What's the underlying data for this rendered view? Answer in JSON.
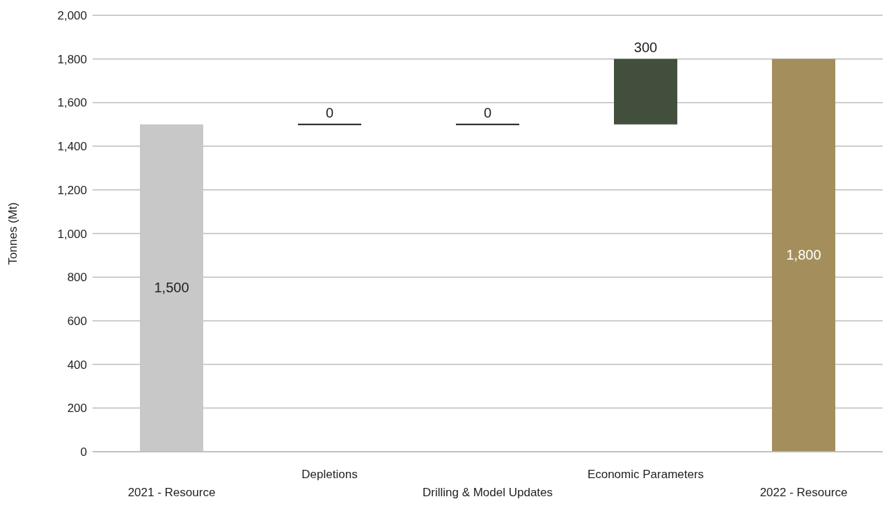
{
  "chart_data": {
    "type": "bar",
    "ylabel": "Tonnes (Mt)",
    "categories": [
      "2021 - Resource",
      "Depletions",
      "Drilling & Model Updates",
      "Economic Parameters",
      "2022 - Resource"
    ],
    "base": [
      0,
      1500,
      1500,
      1500,
      0
    ],
    "values": [
      1500,
      0,
      0,
      300,
      1800
    ],
    "colors": [
      "#c8c8c8",
      "#1a1a1a",
      "#1a1a1a",
      "#434f3d",
      "#a48f5c"
    ],
    "value_labels": [
      "1,500",
      "0",
      "0",
      "300",
      "1,800"
    ],
    "ylim": [
      0,
      2000
    ],
    "yticks": [
      {
        "value": 0,
        "label": "0"
      },
      {
        "value": 200,
        "label": "200"
      },
      {
        "value": 400,
        "label": "400"
      },
      {
        "value": 600,
        "label": "600"
      },
      {
        "value": 800,
        "label": "800"
      },
      {
        "value": 1000,
        "label": "1,000"
      },
      {
        "value": 1200,
        "label": "1,200"
      },
      {
        "value": 1400,
        "label": "1,400"
      },
      {
        "value": 1600,
        "label": "1,600"
      },
      {
        "value": 1800,
        "label": "1,800"
      },
      {
        "value": 2000,
        "label": "2,000"
      }
    ],
    "grid": "y"
  }
}
